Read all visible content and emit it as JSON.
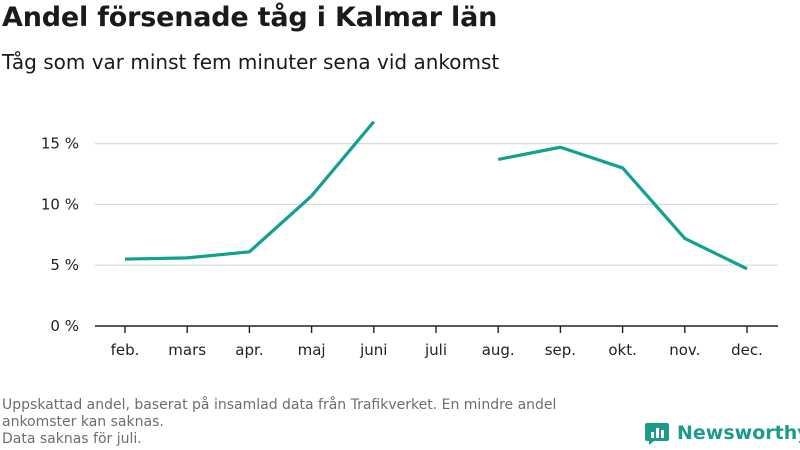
{
  "title": "Andel försenade tåg i Kalmar län",
  "subtitle": "Tåg som var minst fem minuter sena vid ankomst",
  "footnote": {
    "line1": "Uppskattad andel, baserat på insamlad data från Trafikverket. En mindre andel ankomster kan saknas.",
    "line2": "Data saknas för juli."
  },
  "logo": {
    "text": "Newsworthy",
    "icon": "bar-chart-logo-icon",
    "color": "#1d9b8a"
  },
  "chart_data": {
    "type": "line",
    "categories": [
      "feb.",
      "mars",
      "apr.",
      "maj",
      "juni",
      "juli",
      "aug.",
      "sep.",
      "okt.",
      "nov.",
      "dec."
    ],
    "series": [
      {
        "color": "#12a08f",
        "values": [
          5.5,
          5.6,
          6.1,
          10.7,
          16.8,
          null,
          13.7,
          14.7,
          13.0,
          7.2,
          4.7
        ]
      }
    ],
    "ylim": [
      0,
      17
    ],
    "yticks": [
      0,
      5,
      10,
      15
    ],
    "ytick_labels": [
      "0 %",
      "5 %",
      "10 %",
      "15 %"
    ],
    "grid": true
  }
}
